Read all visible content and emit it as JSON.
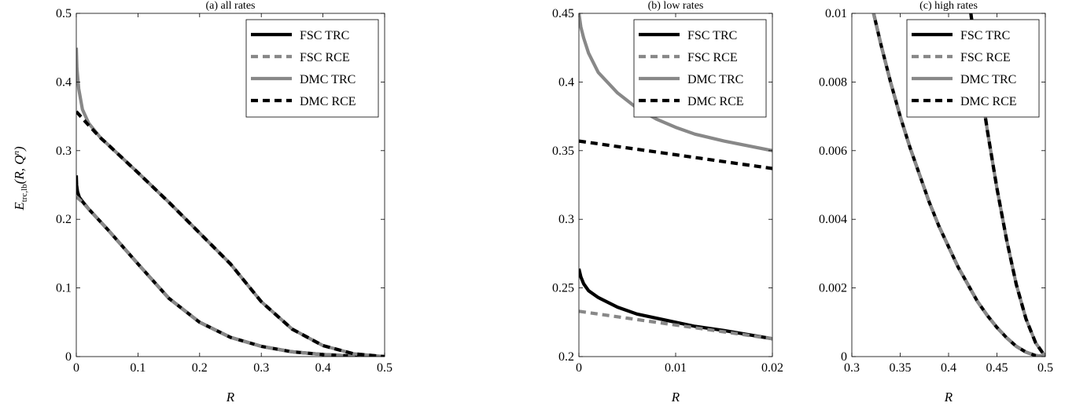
{
  "figure": {
    "ylabel_main": "E",
    "ylabel_sub": "trc,lb",
    "ylabel_args": "(R, Q",
    "ylabel_sup": "n",
    "ylabel_close": ")"
  },
  "chart_data": [
    {
      "type": "line",
      "title": "(a) all rates",
      "xlabel": "R",
      "ylabel": "E_trc,lb(R, Q^n)",
      "xlim": [
        0,
        0.5
      ],
      "ylim": [
        0,
        0.5
      ],
      "xticks": [
        0,
        0.1,
        0.2,
        0.3,
        0.4,
        0.5
      ],
      "yticks": [
        0,
        0.1,
        0.2,
        0.3,
        0.4,
        0.5
      ],
      "xtick_labels": [
        "0",
        "0.1",
        "0.2",
        "0.3",
        "0.4",
        "0.5"
      ],
      "ytick_labels": [
        "0",
        "0.1",
        "0.2",
        "0.3",
        "0.4",
        "0.5"
      ],
      "legend": "top-right",
      "grid": false,
      "series": [
        {
          "name": "FSC TRC",
          "color": "#000000",
          "dash": "solid",
          "x": [
            0,
            0.0005,
            0.002,
            0.005,
            0.01,
            0.02,
            0.05,
            0.1,
            0.15,
            0.2,
            0.25,
            0.3,
            0.35,
            0.4,
            0.45,
            0.5
          ],
          "y": [
            0.264,
            0.25,
            0.24,
            0.232,
            0.226,
            0.215,
            0.186,
            0.135,
            0.085,
            0.05,
            0.028,
            0.015,
            0.007,
            0.003,
            0.0008,
            0
          ]
        },
        {
          "name": "FSC RCE",
          "color": "#888888",
          "dash": "dashed",
          "x": [
            0,
            0.01,
            0.02,
            0.05,
            0.1,
            0.15,
            0.2,
            0.25,
            0.3,
            0.35,
            0.4,
            0.45,
            0.5
          ],
          "y": [
            0.233,
            0.225,
            0.215,
            0.186,
            0.135,
            0.085,
            0.05,
            0.028,
            0.015,
            0.007,
            0.003,
            0.0008,
            0
          ]
        },
        {
          "name": "DMC TRC",
          "color": "#888888",
          "dash": "solid",
          "x": [
            0,
            0.001,
            0.004,
            0.01,
            0.02,
            0.04,
            0.05,
            0.1,
            0.15,
            0.2,
            0.25,
            0.3,
            0.35,
            0.4,
            0.45,
            0.5
          ],
          "y": [
            0.45,
            0.42,
            0.39,
            0.36,
            0.34,
            0.318,
            0.31,
            0.268,
            0.225,
            0.18,
            0.135,
            0.08,
            0.04,
            0.016,
            0.004,
            0
          ]
        },
        {
          "name": "DMC RCE",
          "color": "#000000",
          "dash": "dashed",
          "x": [
            0,
            0.02,
            0.04,
            0.05,
            0.1,
            0.15,
            0.2,
            0.25,
            0.3,
            0.35,
            0.4,
            0.45,
            0.5
          ],
          "y": [
            0.357,
            0.337,
            0.318,
            0.31,
            0.268,
            0.225,
            0.18,
            0.135,
            0.08,
            0.04,
            0.016,
            0.004,
            0
          ]
        }
      ]
    },
    {
      "type": "line",
      "title": "(b) low rates",
      "xlabel": "R",
      "xlim": [
        0,
        0.02
      ],
      "ylim": [
        0.2,
        0.45
      ],
      "xticks": [
        0,
        0.01,
        0.02
      ],
      "yticks": [
        0.2,
        0.25,
        0.3,
        0.35,
        0.4,
        0.45
      ],
      "xtick_labels": [
        "0",
        "0.01",
        "0.02"
      ],
      "ytick_labels": [
        "0.2",
        "0.25",
        "0.3",
        "0.35",
        "0.4",
        "0.45"
      ],
      "legend": "top-right",
      "grid": false,
      "series": [
        {
          "name": "FSC TRC",
          "color": "#000000",
          "dash": "solid",
          "x": [
            0,
            0.0002,
            0.0005,
            0.001,
            0.002,
            0.004,
            0.006,
            0.008,
            0.01,
            0.012,
            0.015,
            0.02
          ],
          "y": [
            0.264,
            0.258,
            0.253,
            0.248,
            0.243,
            0.236,
            0.231,
            0.228,
            0.225,
            0.222,
            0.219,
            0.213
          ]
        },
        {
          "name": "FSC RCE",
          "color": "#888888",
          "dash": "dashed",
          "x": [
            0,
            0.005,
            0.01,
            0.015,
            0.02
          ],
          "y": [
            0.233,
            0.228,
            0.223,
            0.218,
            0.213
          ]
        },
        {
          "name": "DMC TRC",
          "color": "#888888",
          "dash": "solid",
          "x": [
            0,
            0.0002,
            0.0005,
            0.001,
            0.002,
            0.004,
            0.006,
            0.008,
            0.01,
            0.012,
            0.015,
            0.02
          ],
          "y": [
            0.45,
            0.44,
            0.432,
            0.421,
            0.407,
            0.392,
            0.381,
            0.373,
            0.367,
            0.362,
            0.357,
            0.35
          ]
        },
        {
          "name": "DMC RCE",
          "color": "#000000",
          "dash": "dashed",
          "x": [
            0,
            0.005,
            0.01,
            0.015,
            0.02
          ],
          "y": [
            0.357,
            0.352,
            0.347,
            0.342,
            0.337
          ]
        }
      ]
    },
    {
      "type": "line",
      "title": "(c) high rates",
      "xlabel": "R",
      "xlim": [
        0.3,
        0.5
      ],
      "ylim": [
        0,
        0.01
      ],
      "xticks": [
        0.3,
        0.35,
        0.4,
        0.45,
        0.5
      ],
      "yticks": [
        0,
        0.002,
        0.004,
        0.006,
        0.008,
        0.01
      ],
      "xtick_labels": [
        "0.3",
        "0.35",
        "0.4",
        "0.45",
        "0.5"
      ],
      "ytick_labels": [
        "0",
        "0.002",
        "0.004",
        "0.006",
        "0.008",
        "0.01"
      ],
      "legend": "top-right",
      "grid": false,
      "series": [
        {
          "name": "FSC TRC",
          "color": "#000000",
          "dash": "solid",
          "x": [
            0.3225,
            0.33,
            0.34,
            0.35,
            0.36,
            0.37,
            0.38,
            0.39,
            0.4,
            0.41,
            0.42,
            0.43,
            0.44,
            0.45,
            0.46,
            0.47,
            0.48,
            0.49,
            0.5
          ],
          "y": [
            0.01,
            0.0091,
            0.008,
            0.007,
            0.0061,
            0.0053,
            0.0045,
            0.0038,
            0.0032,
            0.0026,
            0.0021,
            0.0016,
            0.0012,
            0.00085,
            0.00055,
            0.0003,
            0.00013,
            3e-05,
            0
          ]
        },
        {
          "name": "FSC RCE",
          "color": "#888888",
          "dash": "dashed",
          "x": [
            0.3225,
            0.33,
            0.34,
            0.35,
            0.36,
            0.37,
            0.38,
            0.39,
            0.4,
            0.41,
            0.42,
            0.43,
            0.44,
            0.45,
            0.46,
            0.47,
            0.48,
            0.49,
            0.5
          ],
          "y": [
            0.01,
            0.0091,
            0.008,
            0.007,
            0.0061,
            0.0053,
            0.0045,
            0.0038,
            0.0032,
            0.0026,
            0.0021,
            0.0016,
            0.0012,
            0.00085,
            0.00055,
            0.0003,
            0.00013,
            3e-05,
            0
          ]
        },
        {
          "name": "DMC TRC",
          "color": "#888888",
          "dash": "solid",
          "x": [
            0.423,
            0.43,
            0.44,
            0.45,
            0.46,
            0.47,
            0.48,
            0.49,
            0.5
          ],
          "y": [
            0.01,
            0.0085,
            0.0066,
            0.0049,
            0.0034,
            0.0021,
            0.0011,
            0.0004,
            0
          ]
        },
        {
          "name": "DMC RCE",
          "color": "#000000",
          "dash": "dashed",
          "x": [
            0.423,
            0.43,
            0.44,
            0.45,
            0.46,
            0.47,
            0.48,
            0.49,
            0.5
          ],
          "y": [
            0.01,
            0.0085,
            0.0066,
            0.0049,
            0.0034,
            0.0021,
            0.0011,
            0.0004,
            0
          ]
        }
      ]
    }
  ]
}
